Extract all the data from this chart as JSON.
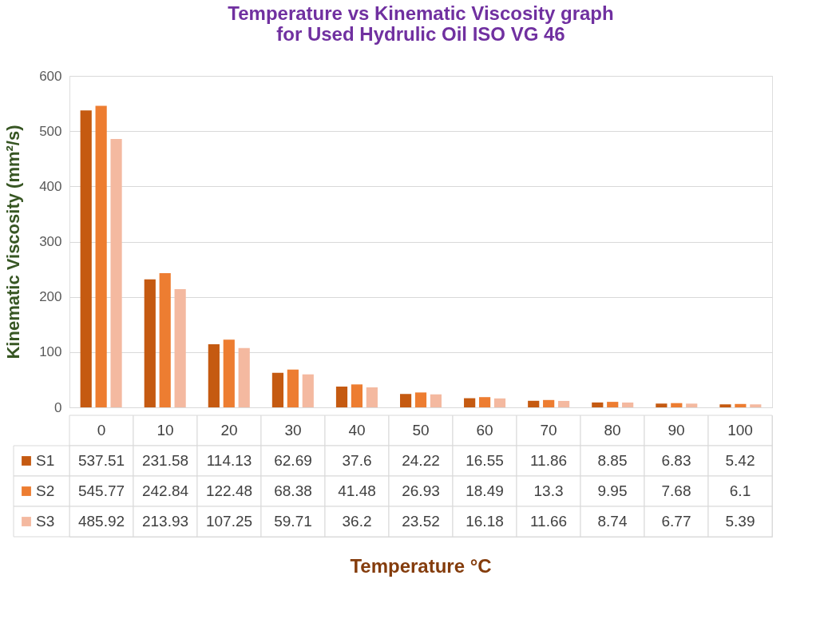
{
  "chart_data": {
    "type": "bar",
    "title": "Temperature vs Kinematic Viscosity graph\nfor Used Hydrulic Oil ISO VG 46",
    "annotations": [
      "Temperature °C"
    ],
    "ylabel": "Kinematic Viscosity (mm²/s)",
    "categories": [
      "0",
      "10",
      "20",
      "30",
      "40",
      "50",
      "60",
      "70",
      "80",
      "90",
      "100"
    ],
    "series": [
      {
        "name": "S1",
        "color": "#c55a11",
        "values": [
          537.51,
          231.58,
          114.13,
          62.69,
          37.6,
          24.22,
          16.55,
          11.86,
          8.85,
          6.83,
          5.42
        ]
      },
      {
        "name": "S2",
        "color": "#ed7d31",
        "values": [
          545.77,
          242.84,
          122.48,
          68.38,
          41.48,
          26.93,
          18.49,
          13.3,
          9.95,
          7.68,
          6.1
        ]
      },
      {
        "name": "S3",
        "color": "#f4b9a0",
        "values": [
          485.92,
          213.93,
          107.25,
          59.71,
          36.2,
          23.52,
          16.18,
          11.66,
          8.74,
          6.77,
          5.39
        ]
      }
    ],
    "ylim": [
      0,
      600
    ],
    "yticks": [
      0,
      100,
      200,
      300,
      400,
      500,
      600
    ],
    "grid": "y",
    "legend": "bottom",
    "data_labels": true
  }
}
